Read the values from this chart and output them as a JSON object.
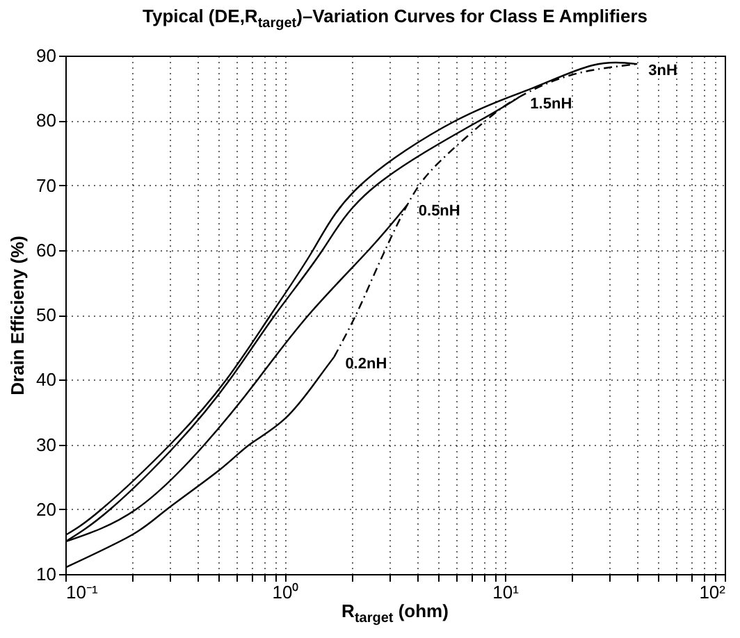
{
  "chart_data": {
    "type": "line",
    "title": "Typical (DE,R$_{target}$)–Variation Curves for Class E Amplifiers",
    "xlabel": "R$_{target}$ (ohm)",
    "ylabel": "Drain Efficieny (%)",
    "log": "x",
    "xlim": [
      0.1,
      100
    ],
    "ylim": [
      10,
      90
    ],
    "xticks": [
      {
        "value": 0.1,
        "label": "10⁻¹"
      },
      {
        "value": 1,
        "label": "10⁰"
      },
      {
        "value": 10,
        "label": "10¹"
      },
      {
        "value": 100,
        "label": "10²"
      }
    ],
    "yticks": [
      10,
      20,
      30,
      40,
      50,
      60,
      70,
      80,
      90
    ],
    "grid": true,
    "marker": "none",
    "series": [
      {
        "name": "0.2nH",
        "color": "#000000",
        "line_style": "solid",
        "x": [
          0.1,
          0.2,
          0.29,
          0.5,
          0.69,
          1,
          1.4,
          1.67
        ],
        "values": [
          11,
          16,
          20,
          26,
          30,
          34,
          40,
          43.5
        ]
      },
      {
        "name": "0.5nH",
        "color": "#000000",
        "line_style": "solid",
        "x": [
          0.1,
          0.21,
          0.43,
          0.75,
          1.28,
          2.4,
          3.6
        ],
        "values": [
          15,
          20,
          30,
          40,
          50,
          60,
          67
        ]
      },
      {
        "name": "1.5nH",
        "color": "#000000",
        "line_style": "solid",
        "x": [
          0.1,
          0.16,
          0.32,
          0.56,
          0.9,
          1.48,
          2.6,
          7.7,
          11.6
        ],
        "values": [
          15,
          20,
          30,
          40,
          50,
          60,
          70,
          80,
          83.6
        ]
      },
      {
        "name": "3nH",
        "color": "#000000",
        "line_style": "solid",
        "x": [
          0.1,
          0.146,
          0.3,
          0.54,
          0.86,
          1.34,
          2.2,
          6,
          13.4,
          25,
          40
        ],
        "values": [
          16,
          20,
          30,
          40,
          50,
          60,
          70,
          80,
          85,
          88.5,
          88.7
        ]
      },
      {
        "color": "#000000",
        "line_style": "dashed",
        "x": [
          1.67,
          2.1,
          2.6,
          3.6,
          5,
          8.2,
          11.6,
          20,
          40
        ],
        "values": [
          43.5,
          50,
          57,
          67,
          73.5,
          80,
          83.6,
          87,
          88.7
        ]
      }
    ]
  }
}
